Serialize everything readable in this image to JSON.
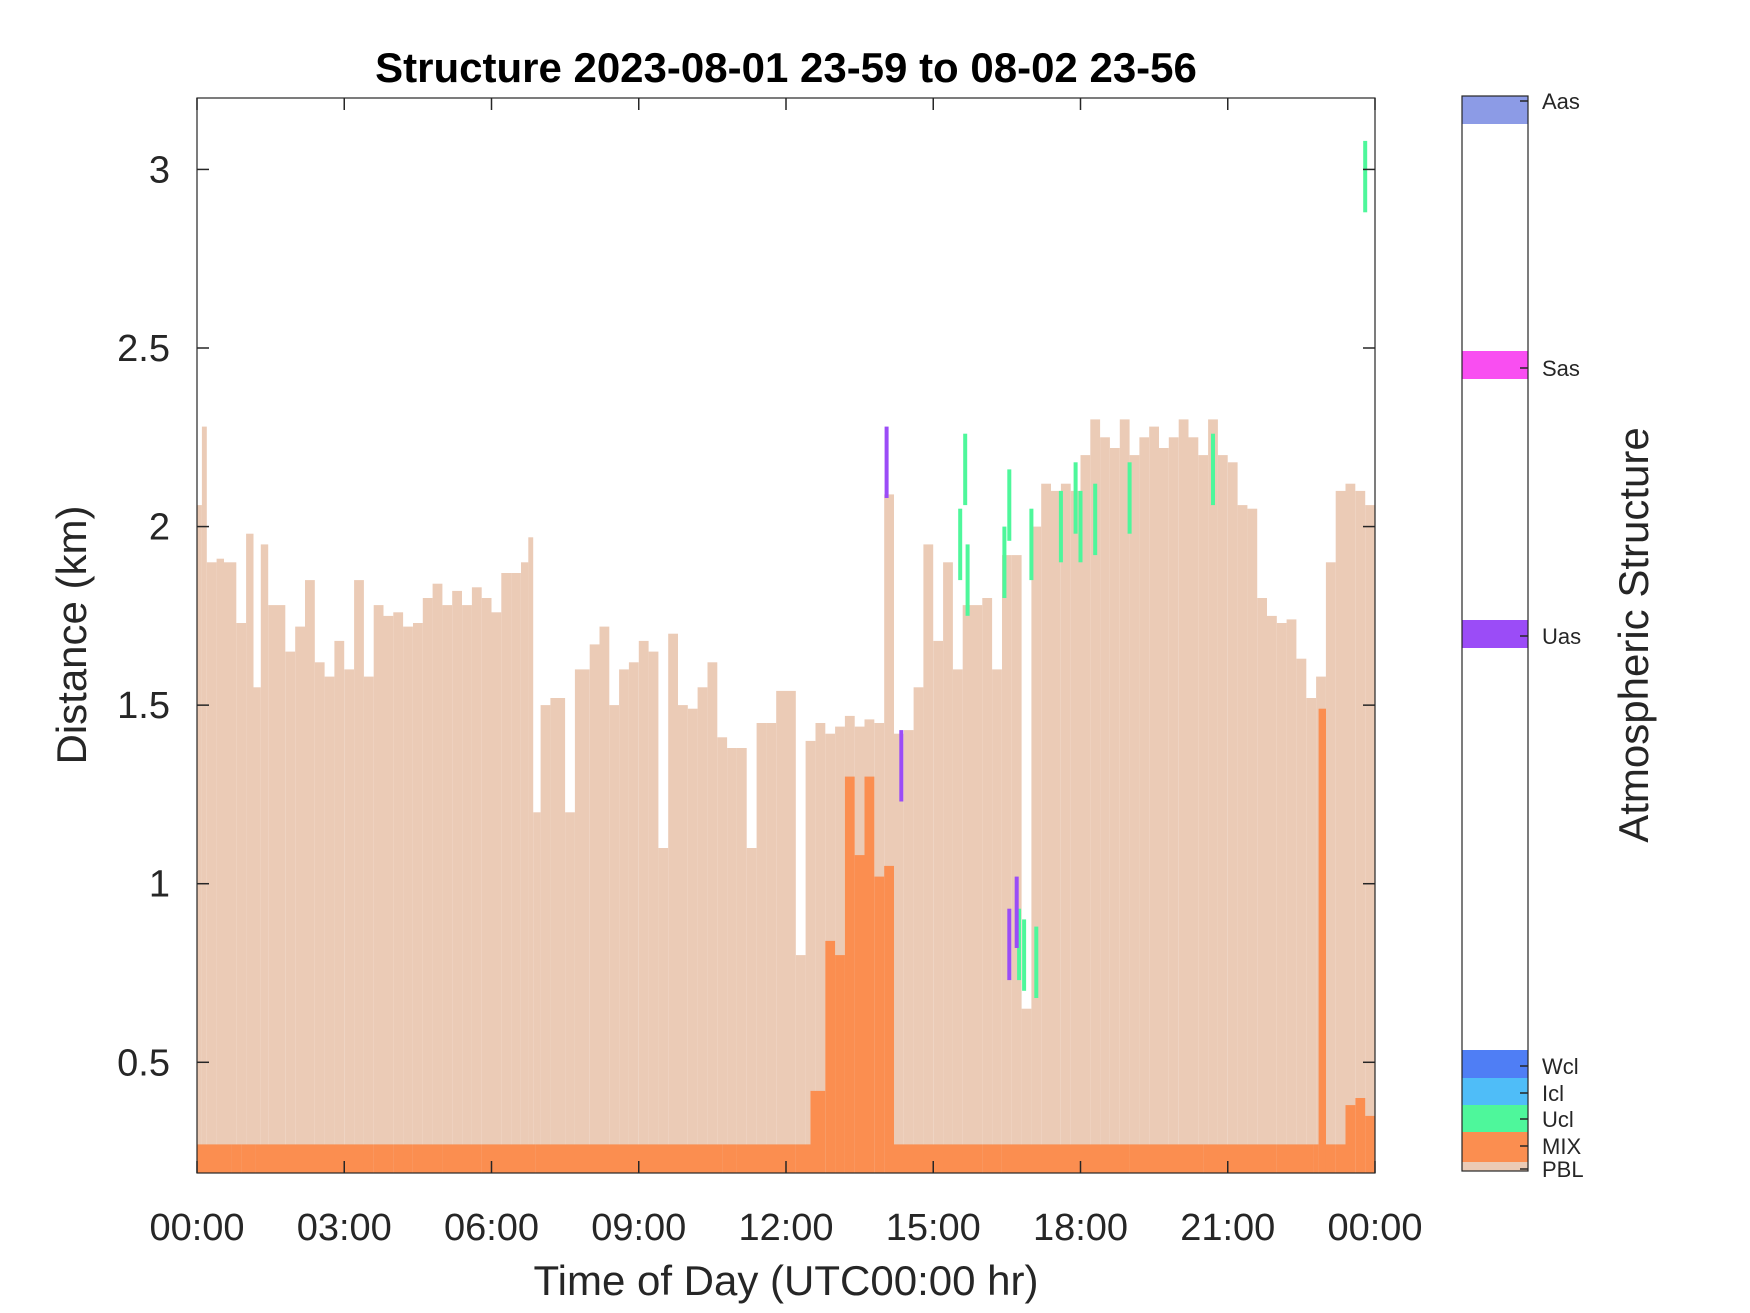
{
  "chart_data": {
    "type": "area",
    "title": "Structure 2023-08-01 23-59 to 08-02 23-56",
    "xlabel": "Time of Day (UTC00:00 hr)",
    "ylabel": "Distance (km)",
    "x_ticks": [
      "00:00",
      "03:00",
      "06:00",
      "09:00",
      "12:00",
      "15:00",
      "18:00",
      "21:00",
      "00:00"
    ],
    "x_range_hours": [
      0,
      24
    ],
    "y_ticks": [
      "0.5",
      "1",
      "1.5",
      "2",
      "2.5",
      "3"
    ],
    "ylim": [
      0.19,
      3.2
    ],
    "grid": false,
    "colorbar": {
      "label": "Atmospheric Structure",
      "categories": [
        {
          "name": "Aas",
          "color": "#8c9be6"
        },
        {
          "name": "Sas",
          "color": "#f94ef1"
        },
        {
          "name": "Uas",
          "color": "#9b4cf7"
        },
        {
          "name": "Wcl",
          "color": "#4f7ef5"
        },
        {
          "name": "Icl",
          "color": "#4fbdf8"
        },
        {
          "name": "Ucl",
          "color": "#4ef79b"
        },
        {
          "name": "MIX",
          "color": "#fb8e50"
        },
        {
          "name": "PBL",
          "color": "#ebcbb6"
        }
      ]
    },
    "series": [
      {
        "name": "PBL",
        "color": "#ebcbb6",
        "points": [
          [
            0.0,
            2.06
          ],
          [
            0.1,
            2.28
          ],
          [
            0.2,
            1.9
          ],
          [
            0.4,
            1.91
          ],
          [
            0.55,
            1.9
          ],
          [
            0.8,
            1.73
          ],
          [
            1.0,
            1.98
          ],
          [
            1.15,
            1.55
          ],
          [
            1.3,
            1.95
          ],
          [
            1.45,
            1.78
          ],
          [
            1.6,
            1.78
          ],
          [
            1.8,
            1.65
          ],
          [
            2.0,
            1.72
          ],
          [
            2.2,
            1.85
          ],
          [
            2.4,
            1.62
          ],
          [
            2.6,
            1.58
          ],
          [
            2.8,
            1.68
          ],
          [
            3.0,
            1.6
          ],
          [
            3.2,
            1.85
          ],
          [
            3.4,
            1.58
          ],
          [
            3.6,
            1.78
          ],
          [
            3.8,
            1.75
          ],
          [
            4.0,
            1.76
          ],
          [
            4.2,
            1.72
          ],
          [
            4.4,
            1.73
          ],
          [
            4.6,
            1.8
          ],
          [
            4.8,
            1.84
          ],
          [
            5.0,
            1.78
          ],
          [
            5.2,
            1.82
          ],
          [
            5.4,
            1.78
          ],
          [
            5.6,
            1.83
          ],
          [
            5.8,
            1.8
          ],
          [
            6.0,
            1.76
          ],
          [
            6.2,
            1.87
          ],
          [
            6.4,
            1.87
          ],
          [
            6.6,
            1.9
          ],
          [
            6.75,
            1.97
          ],
          [
            6.85,
            1.2
          ],
          [
            7.0,
            1.5
          ],
          [
            7.2,
            1.52
          ],
          [
            7.5,
            1.2
          ],
          [
            7.7,
            1.6
          ],
          [
            8.0,
            1.67
          ],
          [
            8.2,
            1.72
          ],
          [
            8.4,
            1.5
          ],
          [
            8.6,
            1.6
          ],
          [
            8.8,
            1.62
          ],
          [
            9.0,
            1.68
          ],
          [
            9.2,
            1.65
          ],
          [
            9.4,
            1.1
          ],
          [
            9.6,
            1.7
          ],
          [
            9.8,
            1.5
          ],
          [
            10.0,
            1.49
          ],
          [
            10.2,
            1.55
          ],
          [
            10.4,
            1.62
          ],
          [
            10.6,
            1.41
          ],
          [
            10.8,
            1.38
          ],
          [
            11.0,
            1.38
          ],
          [
            11.2,
            1.1
          ],
          [
            11.4,
            1.45
          ],
          [
            11.6,
            1.45
          ],
          [
            11.8,
            1.54
          ],
          [
            12.0,
            1.54
          ],
          [
            12.2,
            0.8
          ],
          [
            12.4,
            1.4
          ],
          [
            12.6,
            1.45
          ],
          [
            12.8,
            1.42
          ],
          [
            13.0,
            1.44
          ],
          [
            13.2,
            1.47
          ],
          [
            13.4,
            1.44
          ],
          [
            13.6,
            1.46
          ],
          [
            13.8,
            1.45
          ],
          [
            14.0,
            2.09
          ],
          [
            14.2,
            1.42
          ],
          [
            14.4,
            1.43
          ],
          [
            14.6,
            1.55
          ],
          [
            14.8,
            1.95
          ],
          [
            15.0,
            1.68
          ],
          [
            15.2,
            1.9
          ],
          [
            15.4,
            1.6
          ],
          [
            15.6,
            1.78
          ],
          [
            15.8,
            1.78
          ],
          [
            16.0,
            1.8
          ],
          [
            16.2,
            1.6
          ],
          [
            16.4,
            1.92
          ],
          [
            16.6,
            1.92
          ],
          [
            16.8,
            0.65
          ],
          [
            17.0,
            2.0
          ],
          [
            17.2,
            2.12
          ],
          [
            17.4,
            2.1
          ],
          [
            17.6,
            2.12
          ],
          [
            17.8,
            2.1
          ],
          [
            18.0,
            2.2
          ],
          [
            18.2,
            2.3
          ],
          [
            18.4,
            2.25
          ],
          [
            18.6,
            2.22
          ],
          [
            18.8,
            2.3
          ],
          [
            19.0,
            2.2
          ],
          [
            19.2,
            2.25
          ],
          [
            19.4,
            2.28
          ],
          [
            19.6,
            2.22
          ],
          [
            19.8,
            2.25
          ],
          [
            20.0,
            2.3
          ],
          [
            20.2,
            2.25
          ],
          [
            20.4,
            2.2
          ],
          [
            20.6,
            2.3
          ],
          [
            20.8,
            2.2
          ],
          [
            21.0,
            2.18
          ],
          [
            21.2,
            2.06
          ],
          [
            21.4,
            2.05
          ],
          [
            21.6,
            1.8
          ],
          [
            21.8,
            1.75
          ],
          [
            22.0,
            1.73
          ],
          [
            22.2,
            1.74
          ],
          [
            22.4,
            1.63
          ],
          [
            22.6,
            1.52
          ],
          [
            22.8,
            1.58
          ],
          [
            23.0,
            1.9
          ],
          [
            23.2,
            2.1
          ],
          [
            23.4,
            2.12
          ],
          [
            23.6,
            2.1
          ],
          [
            23.8,
            2.06
          ],
          [
            24.0,
            1.98
          ]
        ]
      },
      {
        "name": "MIX",
        "color": "#fb8e50",
        "points": [
          [
            0.0,
            0.27
          ],
          [
            0.7,
            0.27
          ],
          [
            0.9,
            0.27
          ],
          [
            1.2,
            0.27
          ],
          [
            2.2,
            0.27
          ],
          [
            3.6,
            0.27
          ],
          [
            4.0,
            0.27
          ],
          [
            4.4,
            0.27
          ],
          [
            5.0,
            0.27
          ],
          [
            5.8,
            0.27
          ],
          [
            6.9,
            0.27
          ],
          [
            10.7,
            0.27
          ],
          [
            11.0,
            0.27
          ],
          [
            12.2,
            0.27
          ],
          [
            12.5,
            0.42
          ],
          [
            12.8,
            0.84
          ],
          [
            13.0,
            0.8
          ],
          [
            13.2,
            1.3
          ],
          [
            13.4,
            1.08
          ],
          [
            13.6,
            1.3
          ],
          [
            13.8,
            1.02
          ],
          [
            14.0,
            1.05
          ],
          [
            14.2,
            0.27
          ],
          [
            16.0,
            0.27
          ],
          [
            16.4,
            0.27
          ],
          [
            17.5,
            0.27
          ],
          [
            19.0,
            0.27
          ],
          [
            20.5,
            0.27
          ],
          [
            22.0,
            0.27
          ],
          [
            22.75,
            0.27
          ],
          [
            22.85,
            1.49
          ],
          [
            23.0,
            0.27
          ],
          [
            23.2,
            0.27
          ],
          [
            23.4,
            0.38
          ],
          [
            23.6,
            0.4
          ],
          [
            23.8,
            0.35
          ],
          [
            24.0,
            0.31
          ]
        ]
      },
      {
        "name": "Ucl",
        "color": "#4ef79b",
        "points": [
          [
            15.55,
            2.05
          ],
          [
            15.65,
            2.26
          ],
          [
            15.7,
            1.95
          ],
          [
            16.45,
            2.0
          ],
          [
            16.55,
            2.16
          ],
          [
            16.75,
            0.93
          ],
          [
            16.85,
            0.9
          ],
          [
            17.0,
            2.05
          ],
          [
            17.1,
            0.88
          ],
          [
            17.6,
            2.1
          ],
          [
            17.9,
            2.18
          ],
          [
            18.0,
            2.1
          ],
          [
            18.3,
            2.12
          ],
          [
            19.0,
            2.18
          ],
          [
            20.7,
            2.26
          ],
          [
            23.8,
            3.08
          ]
        ]
      },
      {
        "name": "Uas",
        "color": "#9b4cf7",
        "points": [
          [
            14.05,
            2.28
          ],
          [
            14.35,
            1.43
          ],
          [
            16.55,
            0.93
          ],
          [
            16.7,
            1.02
          ]
        ]
      }
    ]
  }
}
